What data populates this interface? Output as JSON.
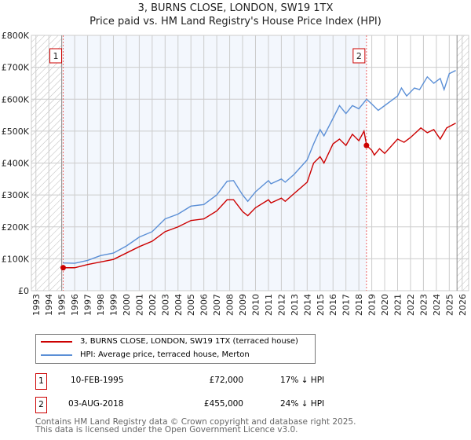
{
  "chart_data": {
    "type": "line",
    "title": "3, BURNS CLOSE, LONDON, SW19 1TX",
    "subtitle": "Price paid vs. HM Land Registry's House Price Index (HPI)",
    "xlim": [
      1992.65,
      2026.5
    ],
    "ylim": [
      0,
      800000
    ],
    "y_ticks": [
      {
        "v": 0,
        "label": "£0"
      },
      {
        "v": 100000,
        "label": "£100K"
      },
      {
        "v": 200000,
        "label": "£200K"
      },
      {
        "v": 300000,
        "label": "£300K"
      },
      {
        "v": 400000,
        "label": "£400K"
      },
      {
        "v": 500000,
        "label": "£500K"
      },
      {
        "v": 600000,
        "label": "£600K"
      },
      {
        "v": 700000,
        "label": "£700K"
      },
      {
        "v": 800000,
        "label": "£800K"
      }
    ],
    "x_ticks": [
      "1993",
      "1994",
      "1995",
      "1996",
      "1997",
      "1998",
      "1999",
      "2000",
      "2001",
      "2002",
      "2003",
      "2004",
      "2005",
      "2006",
      "2007",
      "2008",
      "2009",
      "2010",
      "2011",
      "2012",
      "2013",
      "2014",
      "2015",
      "2016",
      "2017",
      "2018",
      "2019",
      "2020",
      "2021",
      "2022",
      "2023",
      "2024",
      "2025",
      "2026"
    ],
    "grid": true,
    "series": [
      {
        "name": "3, BURNS CLOSE, LONDON, SW19 1TX (terraced house)",
        "color": "#cc0000",
        "x": [
          1995.1,
          1996,
          1997,
          1998,
          1999,
          2000,
          2001,
          2002,
          2003,
          2004,
          2005,
          2006,
          2007,
          2007.8,
          2008.3,
          2009,
          2009.4,
          2010,
          2011,
          2011.2,
          2012,
          2012.3,
          2013,
          2014,
          2014.5,
          2015,
          2015.3,
          2016,
          2016.5,
          2017,
          2017.5,
          2018,
          2018.4,
          2018.6,
          2019,
          2019.2,
          2019.6,
          2020,
          2021,
          2021.5,
          2022,
          2022.8,
          2023.3,
          2023.8,
          2024.3,
          2024.8,
          2025.5
        ],
        "y": [
          72000,
          72000,
          82000,
          90000,
          98000,
          118000,
          138000,
          155000,
          185000,
          200000,
          220000,
          225000,
          250000,
          285000,
          285000,
          248000,
          235000,
          260000,
          285000,
          275000,
          290000,
          280000,
          305000,
          340000,
          400000,
          420000,
          400000,
          460000,
          475000,
          455000,
          490000,
          470000,
          500000,
          455000,
          440000,
          425000,
          445000,
          430000,
          475000,
          465000,
          480000,
          510000,
          495000,
          505000,
          475000,
          510000,
          525000
        ]
      },
      {
        "name": "HPI: Average price, terraced house, Merton",
        "color": "#5b8fd6",
        "x": [
          1995.1,
          1996,
          1997,
          1998,
          1999,
          2000,
          2001,
          2002,
          2003,
          2004,
          2005,
          2006,
          2007,
          2007.8,
          2008.3,
          2009,
          2009.4,
          2010,
          2011,
          2011.2,
          2012,
          2012.3,
          2013,
          2014,
          2014.5,
          2015,
          2015.3,
          2016,
          2016.5,
          2017,
          2017.5,
          2018,
          2018.6,
          2019,
          2019.5,
          2020,
          2021,
          2021.3,
          2021.7,
          2022.3,
          2022.7,
          2023.3,
          2023.8,
          2024.3,
          2024.6,
          2025,
          2025.5
        ],
        "y": [
          87000,
          86000,
          95000,
          110000,
          118000,
          140000,
          168000,
          185000,
          225000,
          240000,
          265000,
          270000,
          300000,
          343000,
          345000,
          300000,
          280000,
          310000,
          345000,
          335000,
          350000,
          340000,
          365000,
          410000,
          460000,
          505000,
          485000,
          540000,
          580000,
          555000,
          580000,
          570000,
          600000,
          585000,
          565000,
          580000,
          610000,
          635000,
          610000,
          635000,
          630000,
          670000,
          650000,
          665000,
          630000,
          680000,
          690000
        ]
      }
    ],
    "sales": [
      {
        "id": "1",
        "x": 1995.11,
        "price": 72000,
        "date": "10-FEB-1995",
        "price_label": "£72,000",
        "hpi": "17% ↓ HPI"
      },
      {
        "id": "2",
        "x": 2018.59,
        "price": 455000,
        "date": "03-AUG-2018",
        "price_label": "£455,000",
        "hpi": "24% ↓ HPI"
      }
    ]
  },
  "footer": {
    "line1": "Contains HM Land Registry data © Crown copyright and database right 2025.",
    "line2": "This data is licensed under the Open Government Licence v3.0."
  }
}
